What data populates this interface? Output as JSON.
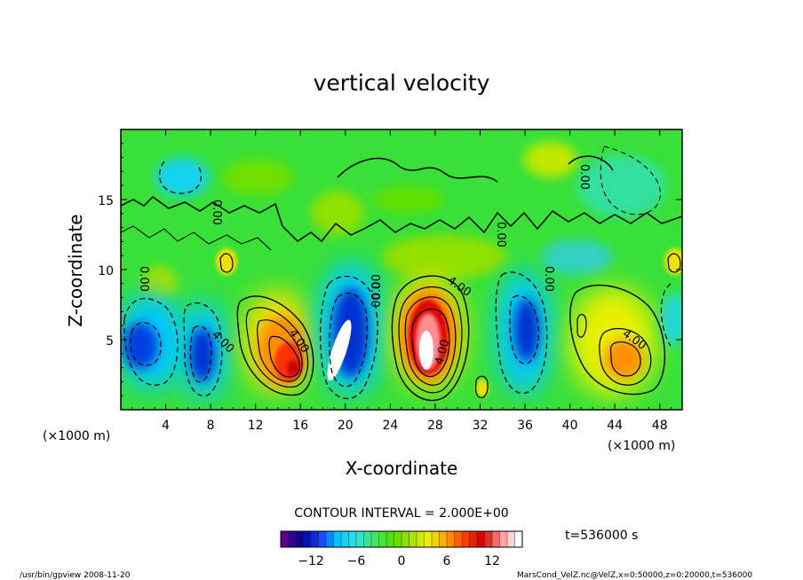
{
  "chart_data": {
    "type": "heatmap",
    "title": "vertical velocity",
    "xlabel": "X-coordinate",
    "ylabel": "Z-coordinate",
    "x_unit": "(×1000 m)",
    "y_unit": "(×1000 m)",
    "xlim": [
      0,
      50
    ],
    "ylim": [
      0,
      20
    ],
    "x_ticks": [
      4,
      8,
      12,
      16,
      20,
      24,
      28,
      32,
      36,
      40,
      44,
      48
    ],
    "y_ticks": [
      5,
      10,
      15
    ],
    "contour_interval_text": "CONTOUR INTERVAL = 2.000E+00",
    "contour_labels": [
      "0.00",
      "0.00",
      "0.00",
      "0.00",
      "0.00",
      "0.00",
      "4.00",
      "4.00",
      "4.00",
      "4.00",
      "4.00",
      "0.00"
    ],
    "colorbar": {
      "ticks": [
        -12,
        -6,
        0,
        6,
        12
      ],
      "range": [
        -16,
        16
      ],
      "colors": [
        "#5a0090",
        "#00008c",
        "#1840ff",
        "#00c8ff",
        "#30e0e0",
        "#40e860",
        "#50e000",
        "#a0e000",
        "#f0f000",
        "#ffa000",
        "#ff4000",
        "#d00000",
        "#ff9090",
        "#ffffff"
      ]
    },
    "features": [
      {
        "x": 2.5,
        "z": 4.5,
        "value": -9
      },
      {
        "x": 7.0,
        "z": 3.5,
        "value": -9
      },
      {
        "x": 14.5,
        "z": 3.5,
        "value": 10
      },
      {
        "x": 19.5,
        "z": 4.5,
        "value": 16
      },
      {
        "x": 21.5,
        "z": 5.5,
        "value": -11
      },
      {
        "x": 27.5,
        "z": 4.5,
        "value": 16
      },
      {
        "x": 36.5,
        "z": 5.0,
        "value": -10
      },
      {
        "x": 44.5,
        "z": 3.5,
        "value": 8
      },
      {
        "x": 5.5,
        "z": 16.5,
        "value": -4
      },
      {
        "x": 40.5,
        "z": 17.5,
        "value": 3
      }
    ]
  },
  "time_label": "t=536000 s",
  "footer": {
    "left": "/usr/bin/gpview  2008-11-20",
    "right": "MarsCond_VelZ.nc@VelZ,x=0:50000,z=0:20000,t=536000"
  }
}
